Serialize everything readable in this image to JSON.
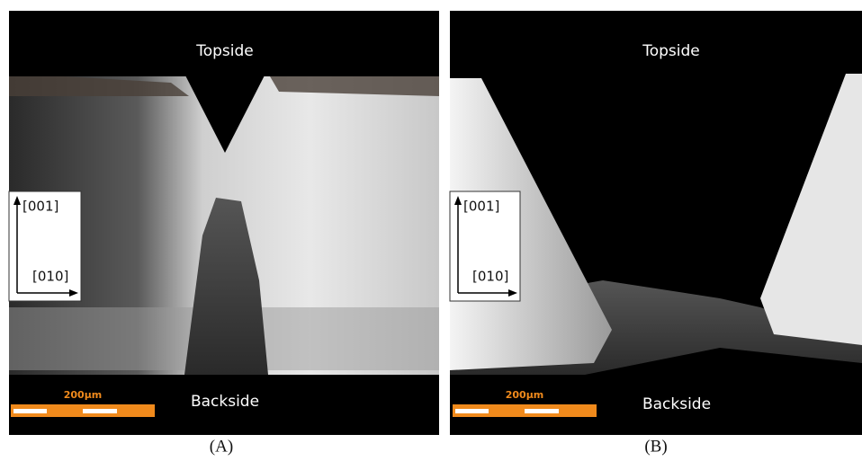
{
  "panels": [
    {
      "caption": "(A)",
      "top_label": "Topside",
      "bottom_label": "Backside",
      "axis_up": "[001]",
      "axis_right": "[010]",
      "scale_bar": "200µm"
    },
    {
      "caption": "(B)",
      "top_label": "Topside",
      "bottom_label": "Backside",
      "axis_up": "[001]",
      "axis_right": "[010]",
      "scale_bar": "200µm"
    }
  ]
}
